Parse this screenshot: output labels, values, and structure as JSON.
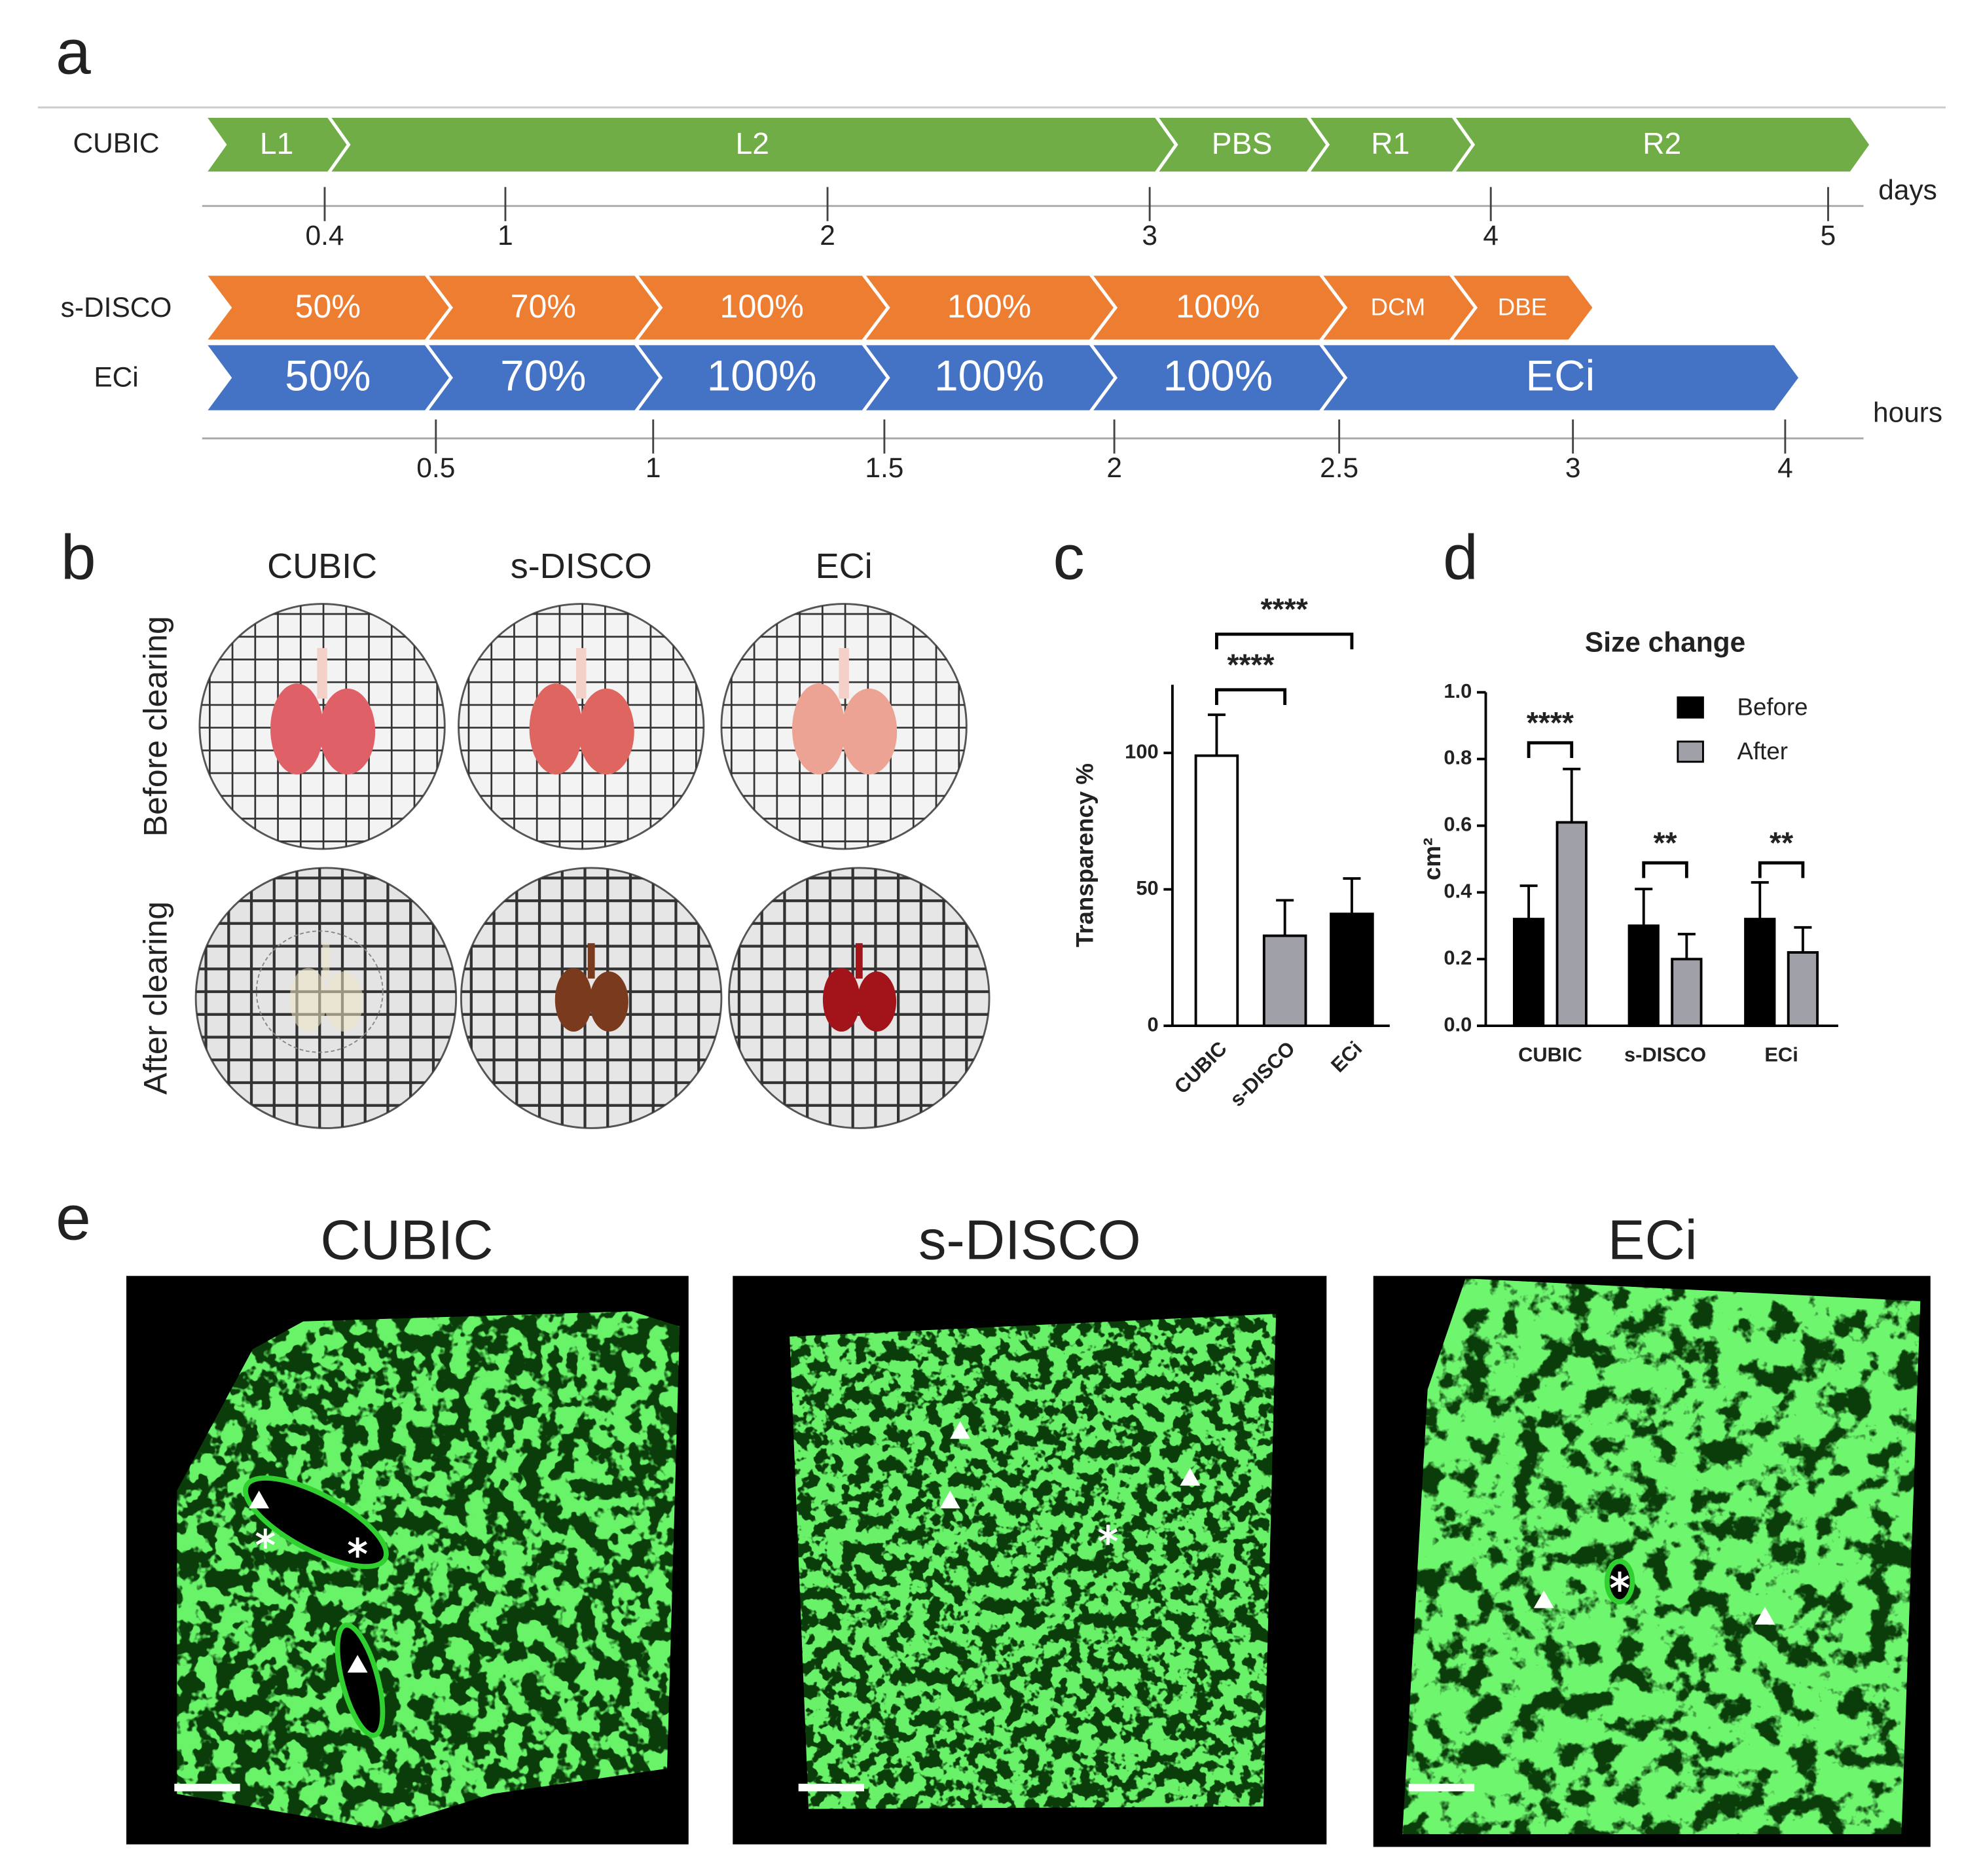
{
  "panel_labels": [
    "a",
    "b",
    "c",
    "d",
    "e"
  ],
  "timeline": {
    "rows": [
      {
        "name": "CUBIC",
        "color": "#70ad47",
        "segments": [
          "L1",
          "L2",
          "PBS",
          "R1",
          "R2"
        ]
      },
      {
        "name": "s-DISCO",
        "color": "#ed7d31",
        "segments": [
          "50%",
          "70%",
          "100%",
          "100%",
          "100%",
          "DCM",
          "DBE"
        ]
      },
      {
        "name": "ECi",
        "color": "#4472c4",
        "segments": [
          "50%",
          "70%",
          "100%",
          "100%",
          "100%",
          "ECi"
        ]
      }
    ],
    "days_axis": {
      "label": "days",
      "ticks": [
        0.4,
        1,
        2,
        3,
        4,
        5
      ]
    },
    "hours_axis": {
      "label": "hours",
      "ticks": [
        0.5,
        1,
        1.5,
        2,
        2.5,
        3,
        4
      ]
    }
  },
  "photos": {
    "columns": [
      "CUBIC",
      "s-DISCO",
      "ECi"
    ],
    "rows": [
      "Before clearing",
      "After clearing"
    ]
  },
  "chart_data": [
    {
      "type": "bar",
      "ylabel": "Transparency %",
      "categories": [
        "CUBIC",
        "s-DISCO",
        "ECi"
      ],
      "values": [
        99,
        33,
        41
      ],
      "errors": [
        15,
        13,
        13
      ],
      "colors": [
        "#ffffff",
        "#a0a0a8",
        "#000000"
      ],
      "ylim": [
        0,
        125
      ],
      "yticks": [
        0,
        50,
        100
      ],
      "annotations": [
        "****",
        "****"
      ]
    },
    {
      "type": "bar",
      "title": "Size change",
      "ylabel": "cm²",
      "categories": [
        "CUBIC",
        "s-DISCO",
        "ECi"
      ],
      "series": [
        {
          "name": "Before",
          "color": "#000000",
          "values": [
            0.32,
            0.3,
            0.32
          ],
          "errors": [
            0.1,
            0.11,
            0.11
          ]
        },
        {
          "name": "After",
          "color": "#a0a0a8",
          "values": [
            0.61,
            0.2,
            0.22
          ],
          "errors": [
            0.16,
            0.075,
            0.075
          ]
        }
      ],
      "ylim": [
        0,
        1
      ],
      "yticks": [
        {
          "value": 0,
          "label": "0.0"
        },
        0.2,
        0.4,
        0.6,
        0.8,
        {
          "value": 1,
          "label": "1.0"
        }
      ],
      "annotations": [
        "****",
        "**",
        "**"
      ]
    }
  ],
  "micrographs": {
    "titles": [
      "CUBIC",
      "s-DISCO",
      "ECi"
    ]
  }
}
